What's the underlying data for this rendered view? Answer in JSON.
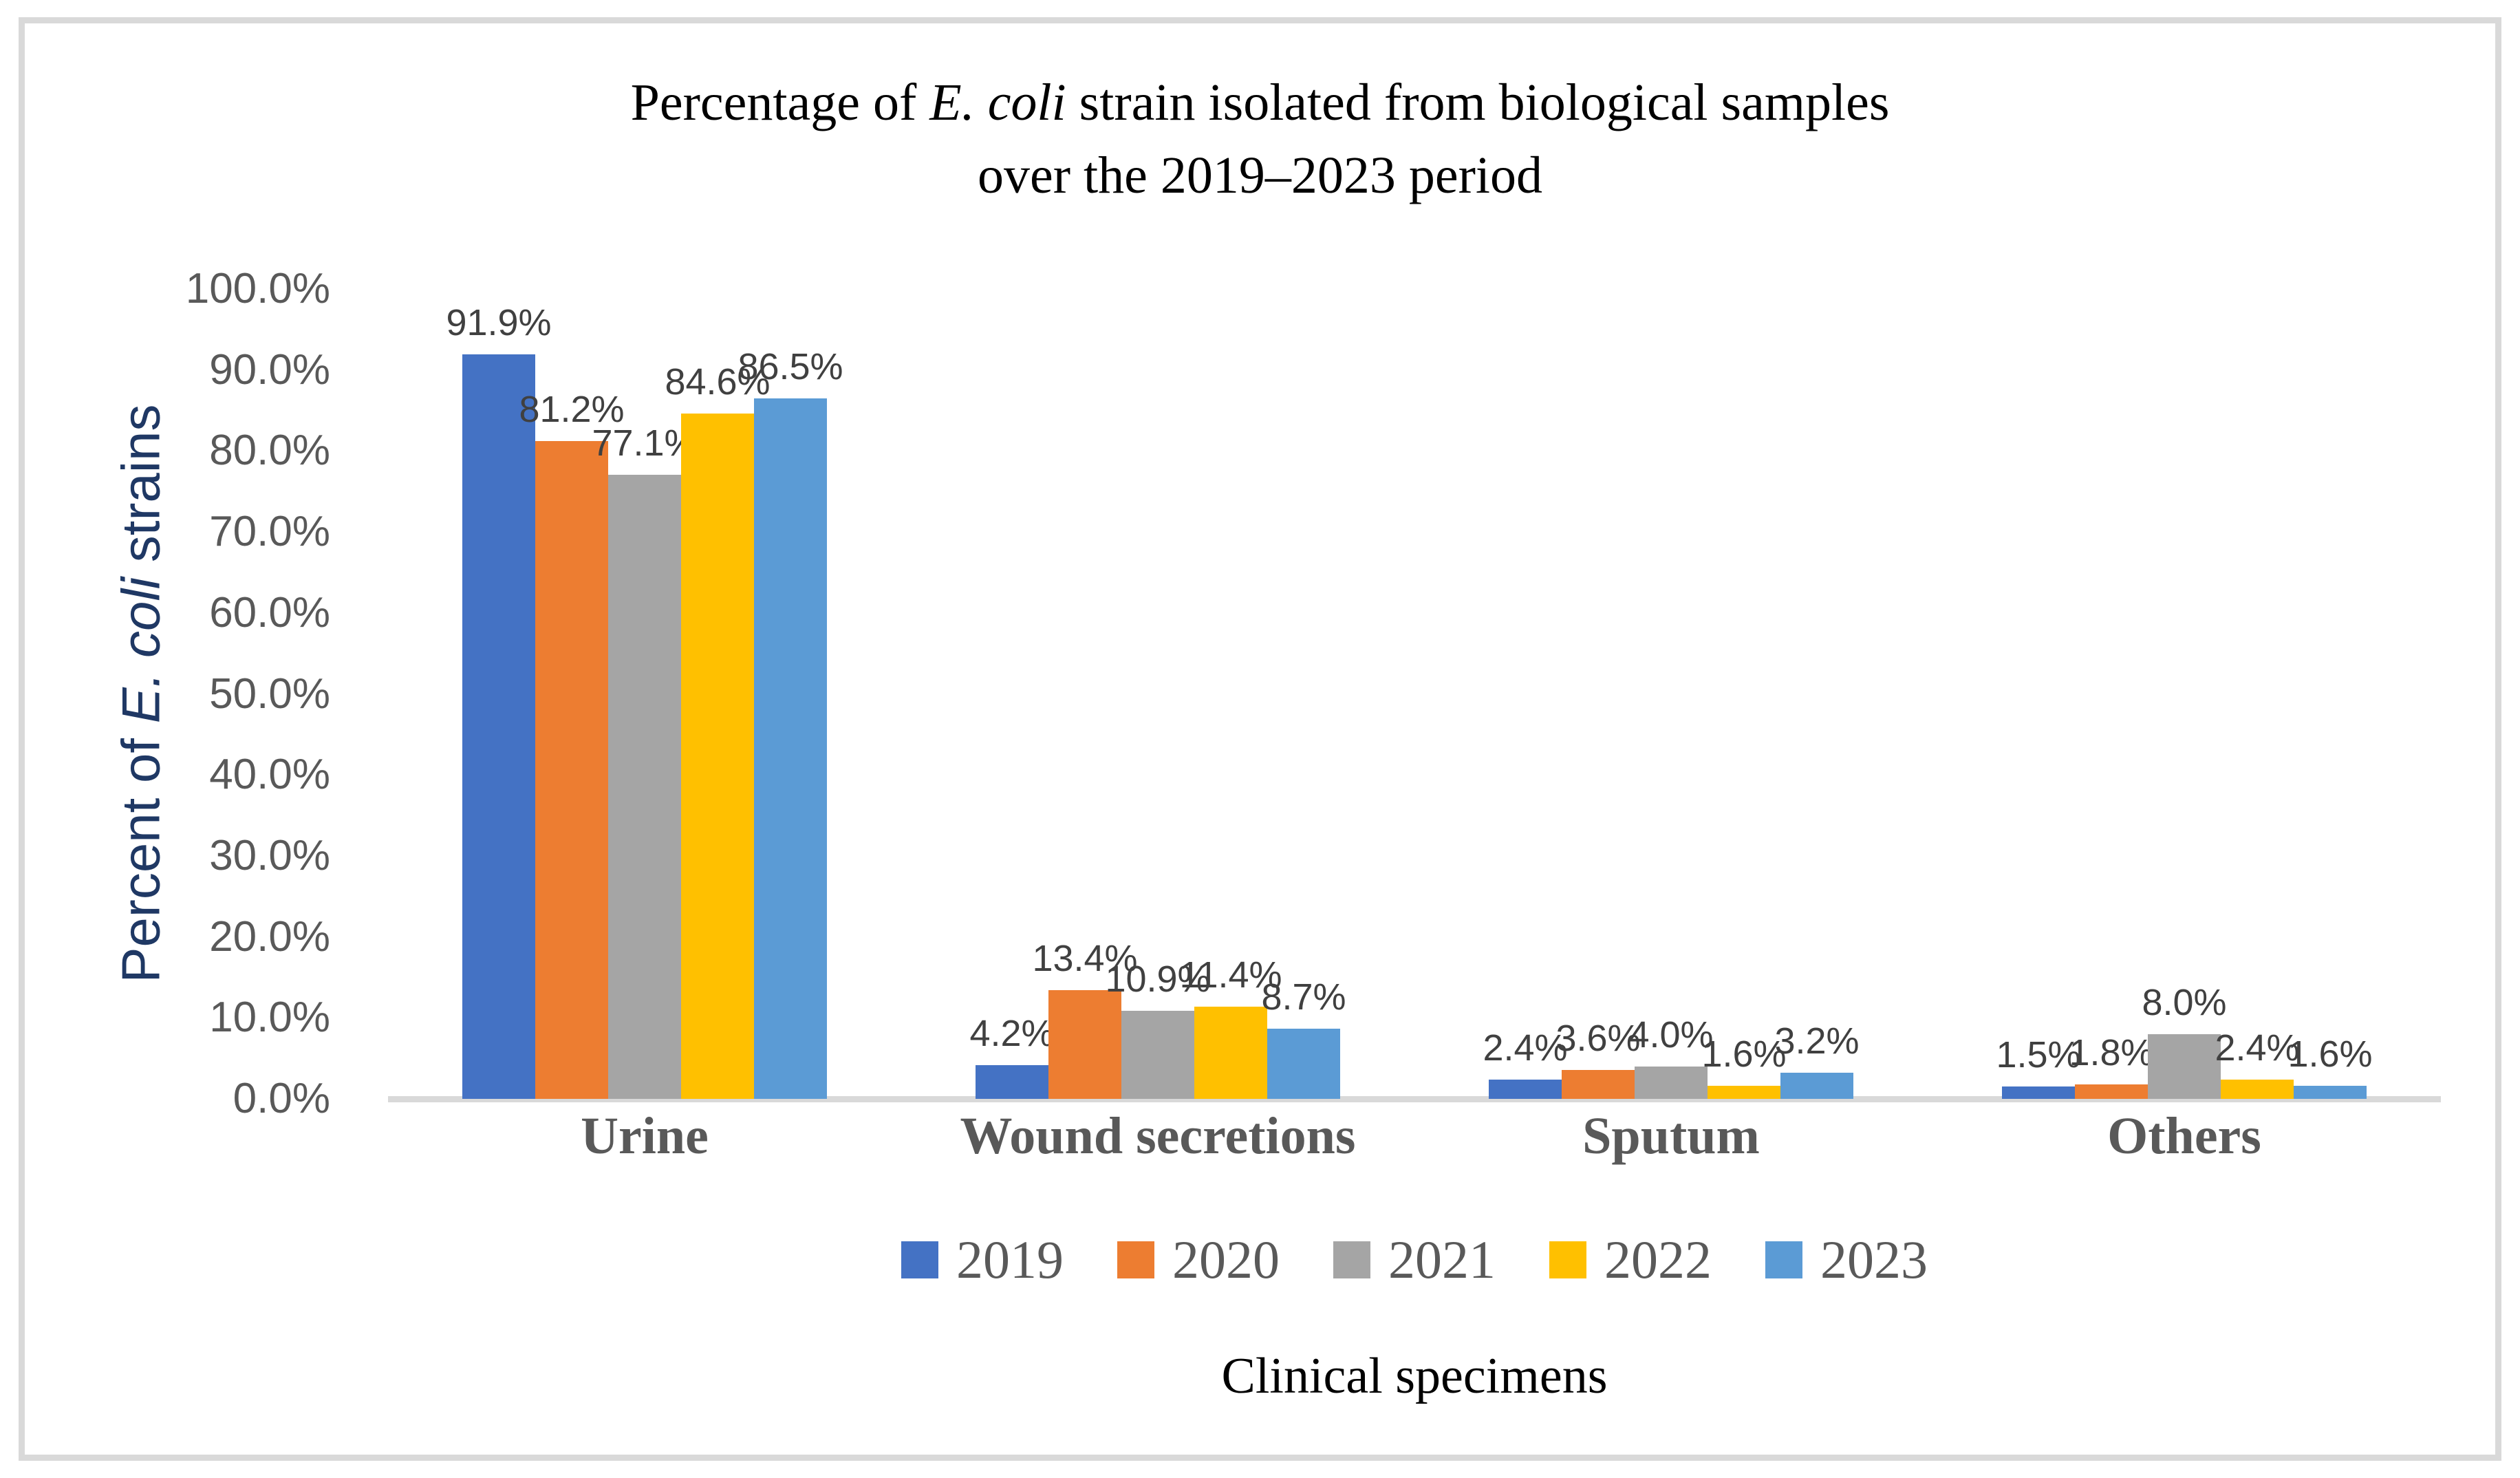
{
  "title": {
    "line1_prefix": "Percentage of ",
    "line1_italic": "E. coli",
    "line1_suffix": " strain isolated from biological samples",
    "line2": "over the 2019–2023 period"
  },
  "y_axis": {
    "title_prefix": "Percent of ",
    "title_italic": "E. coli",
    "title_suffix": " strains",
    "ticks": [
      "100.0%",
      "90.0%",
      "80.0%",
      "70.0%",
      "60.0%",
      "50.0%",
      "40.0%",
      "30.0%",
      "20.0%",
      "10.0%",
      "0.0%"
    ]
  },
  "x_axis": {
    "title": "Clinical specimens"
  },
  "legend": {
    "entries": [
      "2019",
      "2020",
      "2021",
      "2022",
      "2023"
    ]
  },
  "colors": {
    "series_2019": "#4472C4",
    "series_2020": "#ED7D31",
    "series_2021": "#A5A5A5",
    "series_2022": "#FFC000",
    "series_2023": "#5B9BD5",
    "axis_line": "#D9D9D9",
    "tick_text": "#595959",
    "data_label_text": "#404040",
    "y_title_text": "#1F3864"
  },
  "chart_data": {
    "type": "bar",
    "title": "Percentage of E. coli strain isolated from biological samples over the 2019–2023 period",
    "xlabel": "Clinical specimens",
    "ylabel": "Percent of E. coli strains",
    "categories": [
      "Urine",
      "Wound secretions",
      "Sputum",
      "Others"
    ],
    "series": [
      {
        "name": "2019",
        "color": "#4472C4",
        "values": [
          91.9,
          4.2,
          2.4,
          1.5
        ]
      },
      {
        "name": "2020",
        "color": "#ED7D31",
        "values": [
          81.2,
          13.4,
          3.6,
          1.8
        ]
      },
      {
        "name": "2021",
        "color": "#A5A5A5",
        "values": [
          77.1,
          10.9,
          4.0,
          8.0
        ]
      },
      {
        "name": "2022",
        "color": "#FFC000",
        "values": [
          84.6,
          11.4,
          1.6,
          2.4
        ]
      },
      {
        "name": "2023",
        "color": "#5B9BD5",
        "values": [
          86.5,
          8.7,
          3.2,
          1.6
        ]
      }
    ],
    "data_label_format": "0.0%",
    "ylim": [
      0,
      100
    ],
    "ytick_step": 10,
    "grid": false,
    "legend_position": "bottom"
  }
}
